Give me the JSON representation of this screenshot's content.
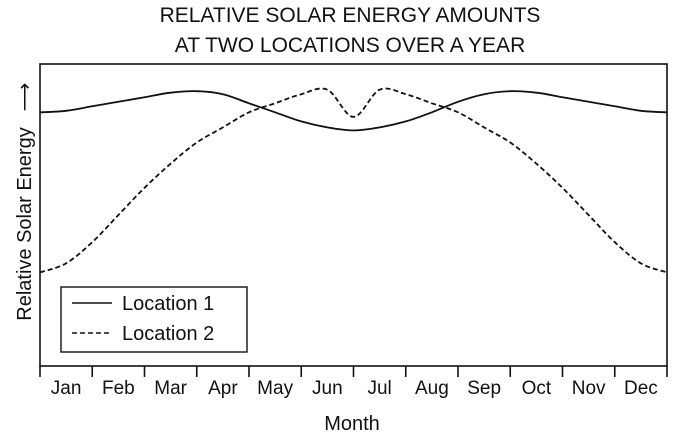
{
  "chart_data": {
    "type": "line",
    "title": [
      "RELATIVE SOLAR ENERGY AMOUNTS",
      "AT TWO LOCATIONS OVER A YEAR"
    ],
    "xlabel": "Month",
    "ylabel": "Relative Solar Energy",
    "ylabel_arrow": "⟶",
    "categories": [
      "Jan",
      "Feb",
      "Mar",
      "Apr",
      "May",
      "Jun",
      "Jul",
      "Aug",
      "Sep",
      "Oct",
      "Nov",
      "Dec"
    ],
    "ylim": [
      0,
      100
    ],
    "yticks_shown": false,
    "grid": false,
    "legend_position": "bottom-left",
    "x": [
      0,
      0.5,
      1,
      1.5,
      2,
      2.5,
      3,
      3.5,
      4,
      4.5,
      5,
      5.5,
      6,
      6.5,
      7,
      7.5,
      8,
      8.5,
      9,
      9.5,
      10,
      10.5,
      11,
      11.5,
      12
    ],
    "series": [
      {
        "name": "Location 1",
        "style": "solid",
        "color": "#111111",
        "values": [
          84,
          84.5,
          86,
          87.5,
          89,
          90.5,
          91,
          90,
          87,
          84,
          81,
          79,
          78,
          79,
          81,
          84,
          87.5,
          90,
          91,
          90.5,
          89,
          87.5,
          86,
          84.5,
          84
        ]
      },
      {
        "name": "Location 2",
        "style": "dashed",
        "color": "#111111",
        "values": [
          31,
          34,
          41,
          50,
          59,
          67,
          74,
          79,
          84,
          87,
          90,
          91.5,
          82.5,
          91.5,
          90,
          87,
          84,
          79,
          74,
          67,
          59,
          50,
          41,
          34,
          31
        ]
      }
    ]
  }
}
